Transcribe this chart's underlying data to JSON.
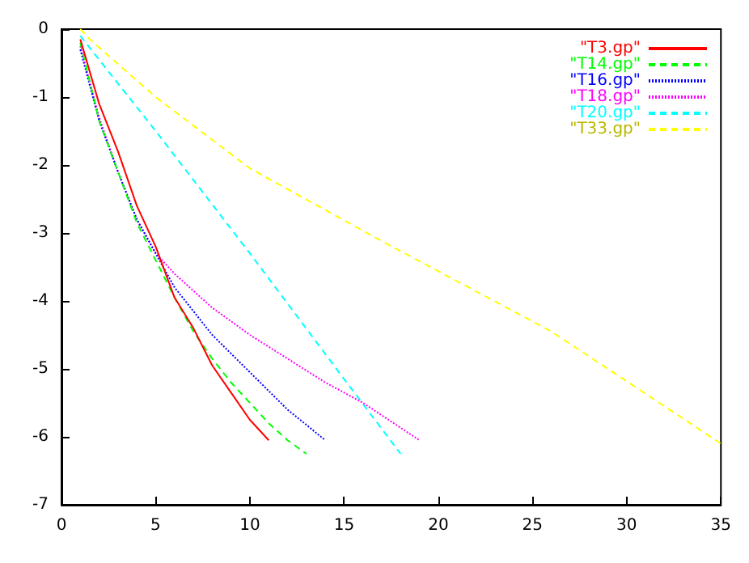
{
  "chart_data": {
    "type": "line",
    "xlim": [
      0,
      35
    ],
    "xticks": [
      0,
      5,
      10,
      15,
      20,
      25,
      30,
      35
    ],
    "ylim": [
      -7,
      0
    ],
    "yticks": [
      -7,
      -6,
      -5,
      -4,
      -3,
      -2,
      -1,
      0
    ],
    "grid": false,
    "legend": "top right",
    "marker": "none",
    "series": [
      {
        "name": "\"T3.gp\"",
        "color": "#ff0000",
        "line_style": "solid",
        "x": [
          1,
          2,
          3,
          4,
          5,
          6,
          7,
          8,
          9,
          10,
          11
        ],
        "values": [
          -0.15,
          -1.1,
          -1.8,
          -2.6,
          -3.2,
          -3.95,
          -4.4,
          -4.95,
          -5.35,
          -5.75,
          -6.05
        ]
      },
      {
        "name": "\"T14.gp\"",
        "color": "#00ff00",
        "line_style": "dashed",
        "x": [
          1,
          2,
          3,
          4,
          5,
          6,
          7,
          8,
          9,
          10,
          11,
          12,
          13
        ],
        "values": [
          -0.2,
          -1.35,
          -2.1,
          -2.85,
          -3.4,
          -3.95,
          -4.45,
          -4.85,
          -5.2,
          -5.5,
          -5.8,
          -6.05,
          -6.25
        ]
      },
      {
        "name": "\"T16.gp\"",
        "color": "#0000ff",
        "line_style": "dotted",
        "x": [
          1,
          2,
          3,
          4,
          5,
          6,
          8,
          10,
          12,
          14
        ],
        "values": [
          -0.3,
          -1.35,
          -2.1,
          -2.8,
          -3.3,
          -3.8,
          -4.5,
          -5.05,
          -5.6,
          -6.05
        ]
      },
      {
        "name": "\"T18.gp\"",
        "color": "#ff00ff",
        "line_style": "dotted",
        "x": [
          1,
          2,
          3,
          4,
          5,
          6,
          8,
          10,
          12,
          14,
          16,
          19
        ],
        "values": [
          -0.25,
          -1.3,
          -2.1,
          -2.8,
          -3.3,
          -3.6,
          -4.1,
          -4.5,
          -4.85,
          -5.2,
          -5.5,
          -6.05
        ]
      },
      {
        "name": "\"T20.gp\"",
        "color": "#00ffff",
        "line_style": "dashed",
        "x": [
          1,
          5,
          10,
          15,
          18
        ],
        "values": [
          -0.1,
          -1.5,
          -3.3,
          -5.15,
          -6.25
        ]
      },
      {
        "name": "\"T33.gp\"",
        "color": "#ffff00",
        "line_style": "dashed",
        "x": [
          1,
          1.5,
          5,
          10,
          17,
          26,
          35
        ],
        "values": [
          0,
          -0.15,
          -1.0,
          -2.05,
          -3.12,
          -4.45,
          -6.1
        ]
      }
    ]
  }
}
